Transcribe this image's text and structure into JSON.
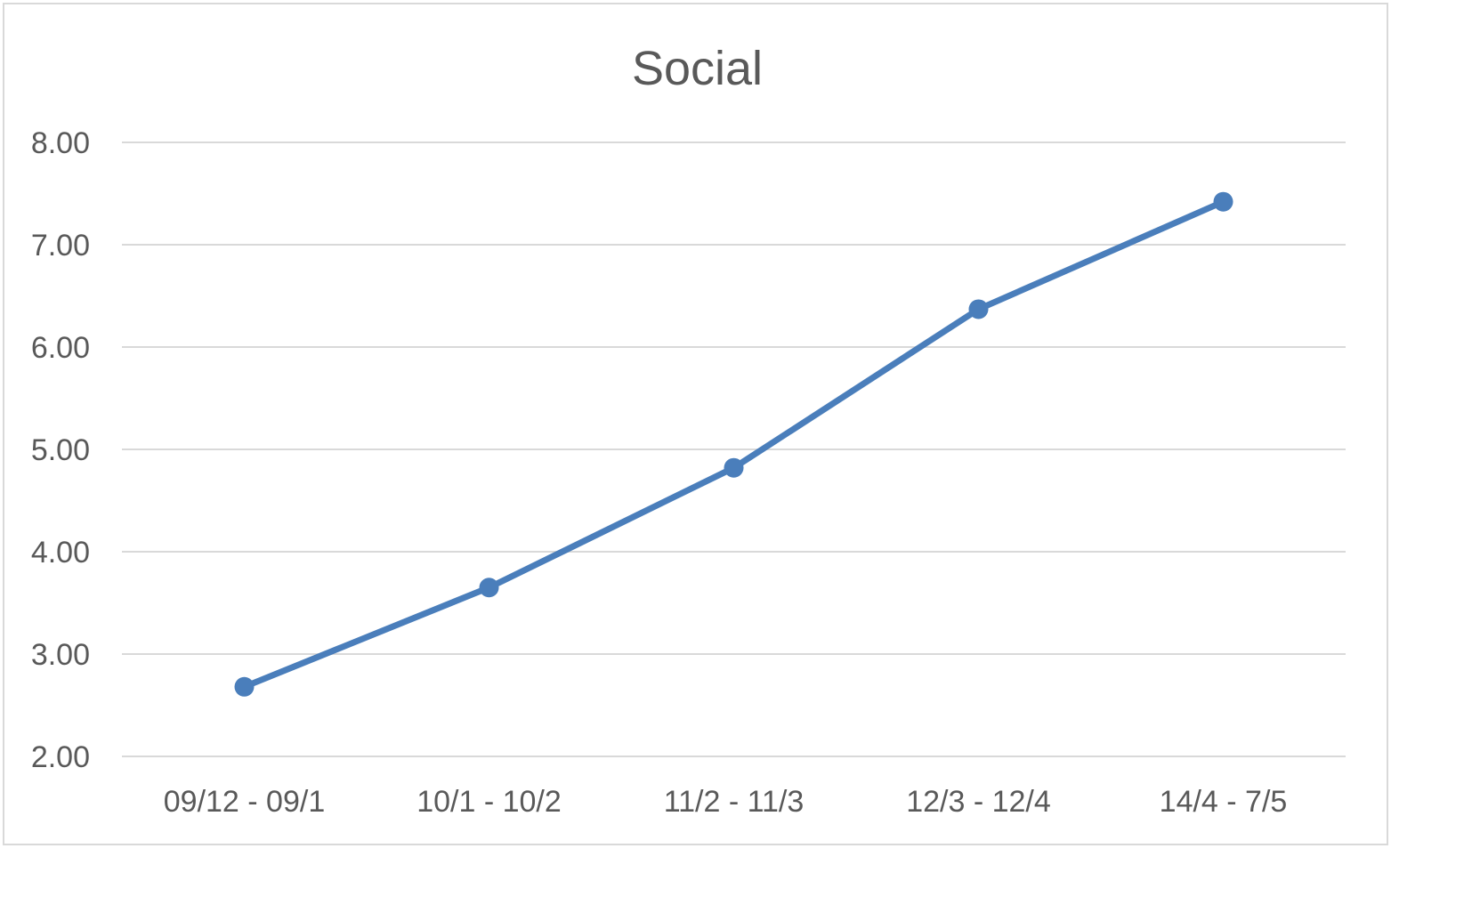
{
  "chart_data": {
    "type": "line",
    "title": "Social",
    "xlabel": "",
    "ylabel": "",
    "categories": [
      "09/12 - 09/1",
      "10/1 - 10/2",
      "11/2 - 11/3",
      "12/3 - 12/4",
      "14/4 - 7/5"
    ],
    "series": [
      {
        "values": [
          2.68,
          3.65,
          4.82,
          6.37,
          7.42
        ],
        "color": "#4a7ebb"
      }
    ],
    "ylim": [
      2.0,
      8.0
    ],
    "yticks": [
      "2.00",
      "3.00",
      "4.00",
      "5.00",
      "6.00",
      "7.00",
      "8.00"
    ],
    "grid": true,
    "legend": "none",
    "colors": {
      "gridline": "#d9d9d9",
      "text": "#595959",
      "border": "#d9d9d9"
    }
  }
}
